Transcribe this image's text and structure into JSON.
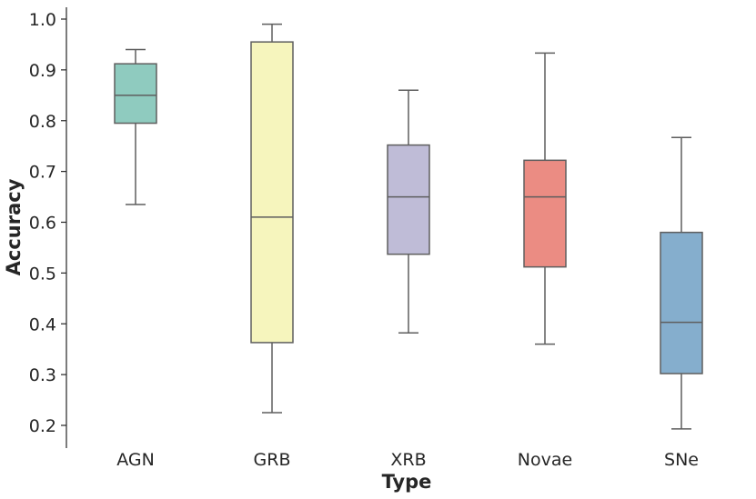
{
  "chart_data": {
    "type": "box",
    "xlabel": "Type",
    "ylabel": "Accuracy",
    "ylim": [
      0.15,
      1.02
    ],
    "yticks": [
      0.2,
      0.3,
      0.4,
      0.5,
      0.6,
      0.7,
      0.8,
      0.9,
      1.0
    ],
    "ytick_labels": [
      "0.2",
      "0.3",
      "0.4",
      "0.5",
      "0.6",
      "0.7",
      "0.8",
      "0.9",
      "1.0"
    ],
    "categories": [
      "AGN",
      "GRB",
      "XRB",
      "Novae",
      "SNe"
    ],
    "colors": [
      "#8fcbbf",
      "#f6f5bd",
      "#bfbcd7",
      "#eb8c83",
      "#85aecd"
    ],
    "boxes": [
      {
        "min": 0.635,
        "q1": 0.795,
        "median": 0.85,
        "q3": 0.912,
        "max": 0.94
      },
      {
        "min": 0.225,
        "q1": 0.363,
        "median": 0.61,
        "q3": 0.955,
        "max": 0.99
      },
      {
        "min": 0.382,
        "q1": 0.537,
        "median": 0.65,
        "q3": 0.752,
        "max": 0.86
      },
      {
        "min": 0.36,
        "q1": 0.512,
        "median": 0.65,
        "q3": 0.722,
        "max": 0.933
      },
      {
        "min": 0.193,
        "q1": 0.302,
        "median": 0.403,
        "q3": 0.58,
        "max": 0.767
      }
    ],
    "grid": false,
    "legend": "none"
  }
}
